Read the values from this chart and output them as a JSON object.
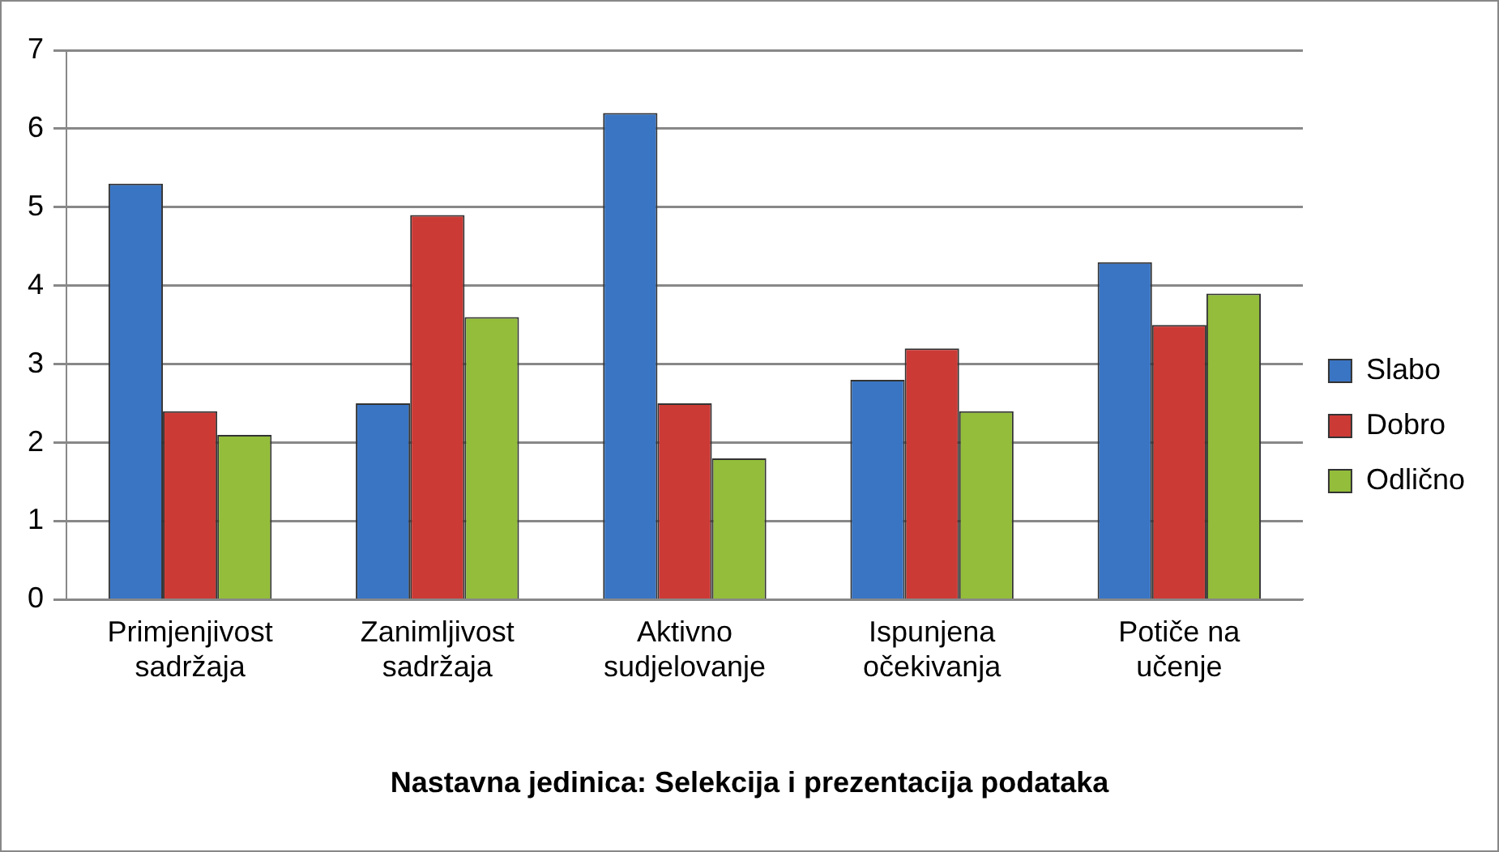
{
  "chart_data": {
    "type": "bar",
    "title": "Nastavna jedinica: Selekcija i prezentacija podataka",
    "categories": [
      "Primjenjivost sadržaja",
      "Zanimljivost sadržaja",
      "Aktivno sudjelovanje",
      "Ispunjena očekivanja",
      "Potiče na učenje"
    ],
    "series": [
      {
        "name": "Slabo",
        "color": "#3a75c4",
        "values": [
          5.3,
          2.5,
          6.2,
          2.8,
          4.3
        ]
      },
      {
        "name": "Dobro",
        "color": "#cc3a36",
        "values": [
          2.4,
          4.9,
          2.5,
          3.2,
          3.5
        ]
      },
      {
        "name": "Odlično",
        "color": "#93bd3a",
        "values": [
          2.1,
          3.6,
          1.8,
          2.4,
          3.9
        ]
      }
    ],
    "ylim": [
      0,
      7
    ],
    "yticks": [
      0,
      1,
      2,
      3,
      4,
      5,
      6,
      7
    ],
    "grid": "y",
    "legend": "right"
  }
}
